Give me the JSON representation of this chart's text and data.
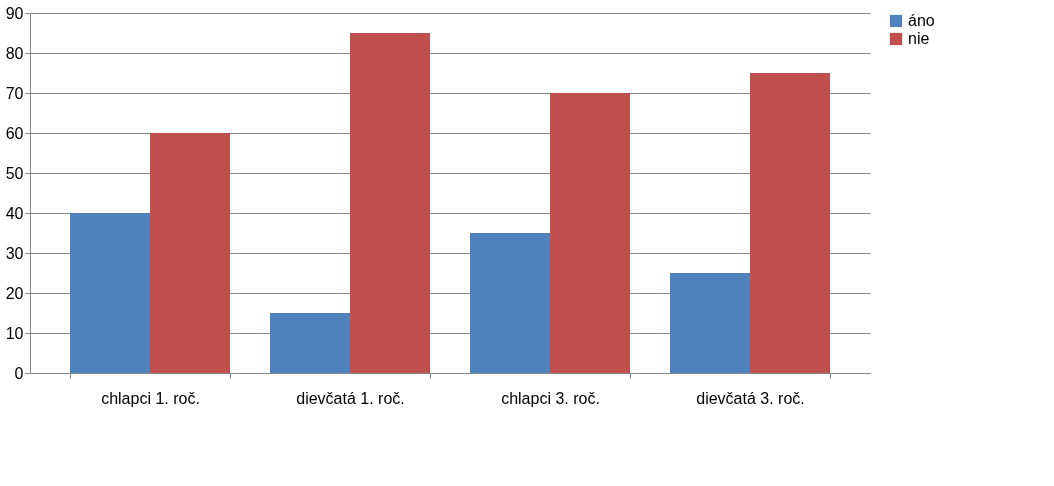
{
  "chart_data": {
    "type": "bar",
    "categories": [
      "chlapci 1. roč.",
      "dievčatá 1. roč.",
      "chlapci 3. roč.",
      "dievčatá 3. roč."
    ],
    "series": [
      {
        "name": "áno",
        "color": "#4f81bd",
        "values": [
          40,
          15,
          35,
          25
        ]
      },
      {
        "name": "nie",
        "color": "#c0504d",
        "values": [
          60,
          85,
          70,
          75
        ]
      }
    ],
    "ylim": [
      0,
      90
    ],
    "yticks": [
      0,
      10,
      20,
      30,
      40,
      50,
      60,
      70,
      80,
      90
    ],
    "grid": "y",
    "legend": "right"
  }
}
